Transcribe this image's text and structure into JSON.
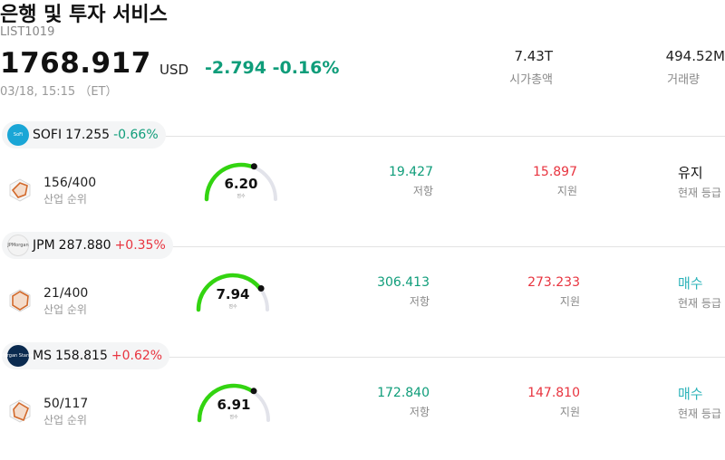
{
  "header": {
    "title": "은행 및 투자 서비스",
    "code": "LIST1019",
    "price": "1768.917",
    "currency": "USD",
    "change": "-2.794",
    "change_pct": "-0.16%",
    "timestamp": "03/18, 15:15 （ET）",
    "market_cap_value": "7.43T",
    "market_cap_label": "시가총액",
    "volume_value": "494.52M",
    "volume_label": "거래량"
  },
  "colors": {
    "up": "#e8343f",
    "down": "#0f9d7a",
    "gauge": "#33d411",
    "buy": "#2bb3b9"
  },
  "stocks": [
    {
      "ticker": "SOFI",
      "price": "17.255",
      "change": "-0.66%",
      "direction": "down",
      "logo_icon": "sofi-logo-icon",
      "logo_text": "SoFi",
      "rank": "156/400",
      "rank_label": "산업 순위",
      "score": "6.20",
      "score_value": 6.2,
      "score_label": "점수",
      "resistance": "19.427",
      "resistance_label": "저항",
      "support": "15.897",
      "support_label": "지원",
      "grade": "유지",
      "grade_label": "현재 등급",
      "grade_type": "hold"
    },
    {
      "ticker": "JPM",
      "price": "287.880",
      "change": "+0.35%",
      "direction": "up",
      "logo_icon": "jpmorgan-logo-icon",
      "logo_text": "JPMorgan",
      "rank": "21/400",
      "rank_label": "산업 순위",
      "score": "7.94",
      "score_value": 7.94,
      "score_label": "점수",
      "resistance": "306.413",
      "resistance_label": "저항",
      "support": "273.233",
      "support_label": "지원",
      "grade": "매수",
      "grade_label": "현재 등급",
      "grade_type": "buy"
    },
    {
      "ticker": "MS",
      "price": "158.815",
      "change": "+0.62%",
      "direction": "up",
      "logo_icon": "morgan-stanley-logo-icon",
      "logo_text": "Morgan Stanley",
      "rank": "50/117",
      "rank_label": "산업 순위",
      "score": "6.91",
      "score_value": 6.91,
      "score_label": "점수",
      "resistance": "172.840",
      "resistance_label": "저항",
      "support": "147.810",
      "support_label": "지원",
      "grade": "매수",
      "grade_label": "현재 등급",
      "grade_type": "buy"
    }
  ]
}
